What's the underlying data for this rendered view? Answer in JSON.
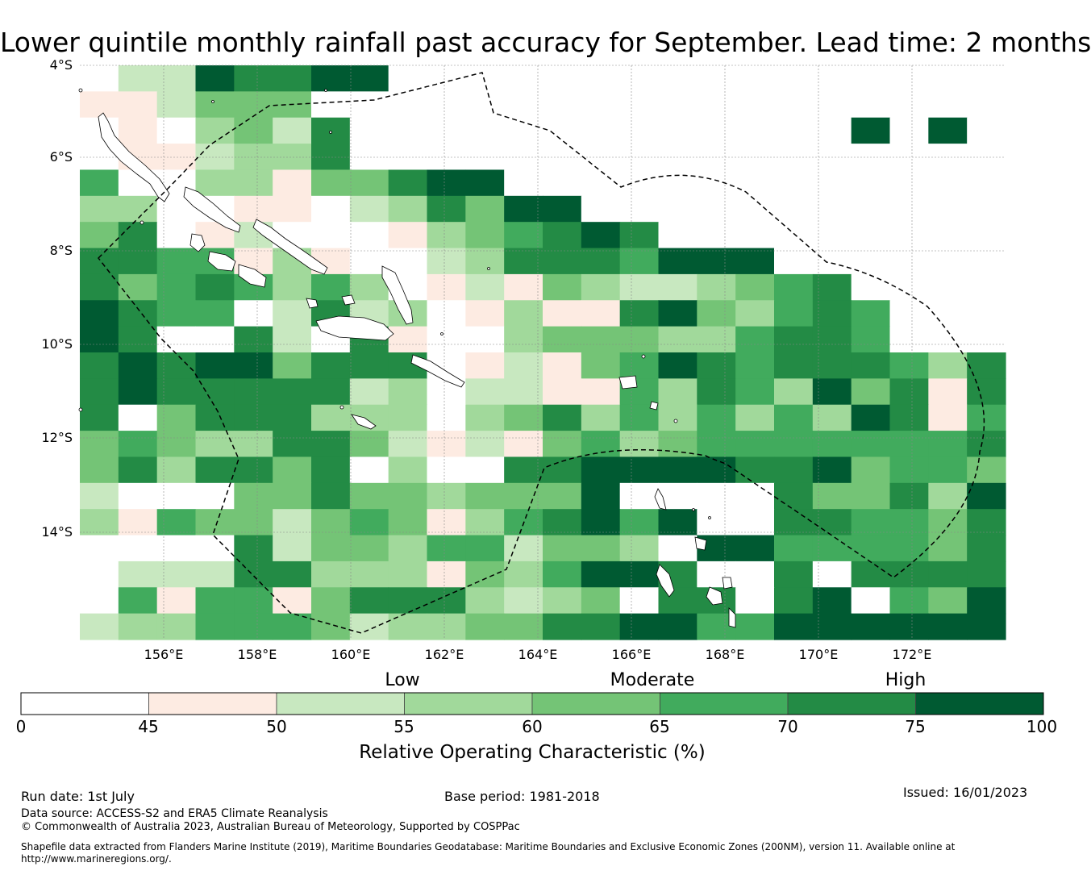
{
  "title": "Lower quintile monthly rainfall past accuracy for September. Lead time: 2 months",
  "map": {
    "lat_labels": [
      "4°S",
      "6°S",
      "8°S",
      "10°S",
      "12°S",
      "14°S"
    ],
    "lon_labels": [
      "156°E",
      "158°E",
      "160°E",
      "162°E",
      "164°E",
      "166°E",
      "168°E",
      "170°E",
      "172°E"
    ],
    "grid_columns": 24,
    "grid_rows": 22,
    "cell_levels": [
      "022766778888888888888888",
      "112444888888888888888888",
      "010342688888888888887878",
      "011233688888888888888888",
      "500331446778888888888888",
      "330011023647788888888888",
      "460120001345676888888888",
      "665513100236665777888888",
      "645653530121432234568888",
      "765582623013116743565888",
      "768862061003444335665888",
      "676774666012145765666536",
      "676666623022115365374616",
      "684666333034635353537615",
      "454336642121453455555556",
      "463664603006677776674554",
      "200044644344478888644637",
      "315442454135675788665546",
      "000062443552443877555546",
      "022266333143577688686666",
      "051551466632348668678547",
      "233555423344667755777777"
    ],
    "eez_note": "dashed outline of exclusive economic zone"
  },
  "colorbar": {
    "category_labels": [
      "Low",
      "Moderate",
      "High"
    ],
    "ticks": [
      "0",
      "45",
      "50",
      "55",
      "60",
      "65",
      "70",
      "75",
      "100"
    ],
    "colors": [
      "#ffffff",
      "#fdebe2",
      "#c8e8c0",
      "#a1d99b",
      "#74c476",
      "#41ab5d",
      "#238b45",
      "#005a32"
    ],
    "title": "Relative Operating Characteristic (%)"
  },
  "footer": {
    "run_date": "Run date: 1st July",
    "base_period": "Base period: 1981-2018",
    "issued": "Issued: 16/01/2023",
    "data_source": "Data source: ACCESS-S2 and ERA5 Climate Reanalysis",
    "copyright": "© Commonwealth of Australia 2023, Australian Bureau of Meteorology, Supported by COSPPac",
    "shapefile_line1": "Shapefile data extracted from Flanders Marine Institute (2019), Maritime Boundaries Geodatabase: Maritime Boundaries and Exclusive Economic Zones (200NM), version 11. Available online at",
    "shapefile_line2": "http://www.marineregions.org/."
  }
}
